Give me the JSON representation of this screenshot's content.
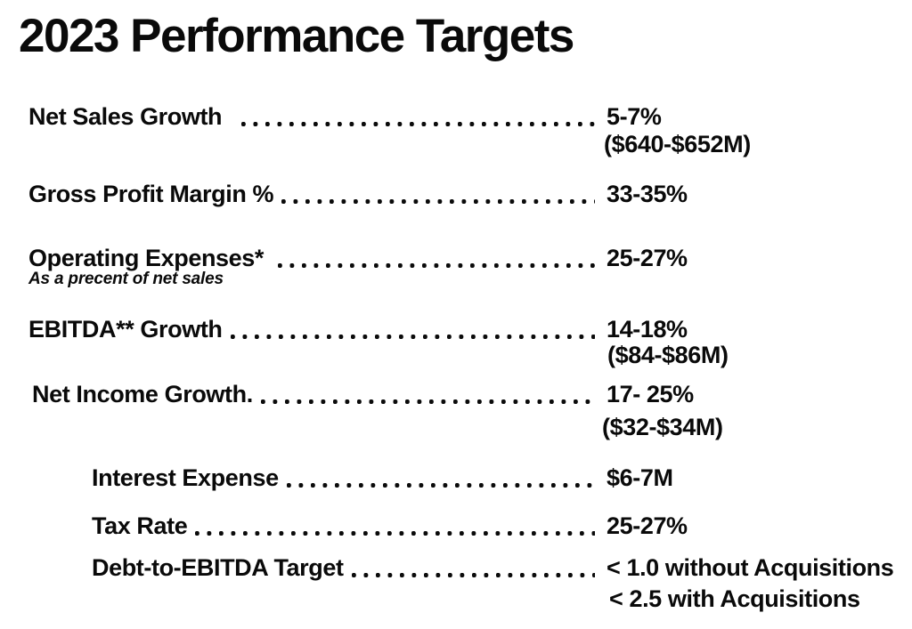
{
  "title": "2023 Performance Targets",
  "rows": [
    {
      "label": "Net Sales Growth",
      "value": "5-7%",
      "value_sub": "($640-$652M)"
    },
    {
      "label": "Gross Profit Margin %",
      "value": "33-35%"
    },
    {
      "label": "Operating Expenses*",
      "value": "25-27%",
      "note": "As a precent of net sales"
    },
    {
      "label": "EBITDA** Growth",
      "value": "14-18%",
      "value_sub": "($84-$86M)"
    },
    {
      "label": "Net Income Growth.",
      "value": "17- 25%",
      "value_sub": "($32-$34M)"
    },
    {
      "label": "Interest Expense",
      "value": "$6-7M"
    },
    {
      "label": "Tax Rate",
      "value": "25-27%"
    },
    {
      "label": "Debt-to-EBITDA Target",
      "value": "< 1.0 without Acquisitions",
      "value_sub": "< 2.5 with Acquisitions"
    }
  ],
  "colors": {
    "text": "#0a0a0a",
    "background": "#ffffff"
  }
}
